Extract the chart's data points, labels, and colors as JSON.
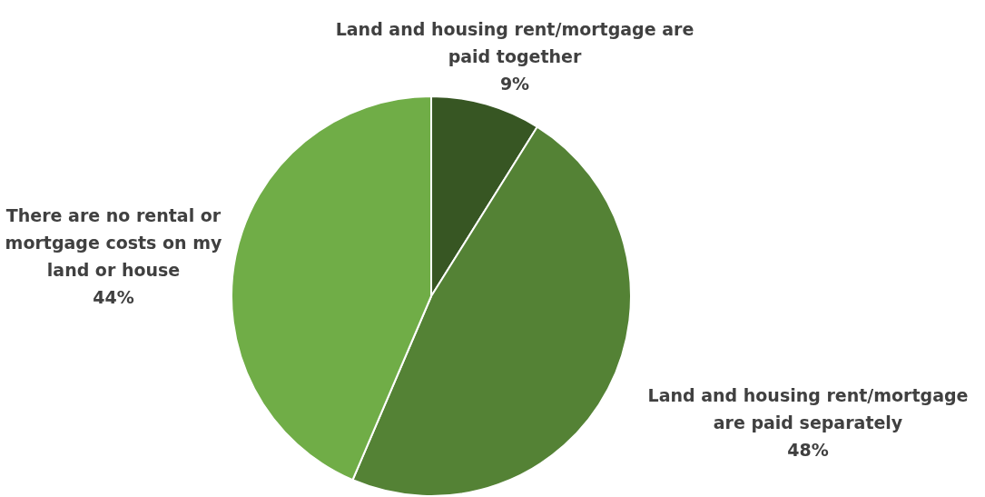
{
  "chart_data": {
    "type": "pie",
    "categories": [
      "Land and housing rent/mortgage are paid together",
      "Land and housing rent/mortgage are paid separately",
      "There are no rental or mortgage costs on my land or house"
    ],
    "values": [
      9,
      48,
      44
    ],
    "value_labels": [
      "9%",
      "48%",
      "44%"
    ],
    "colors": [
      "#375623",
      "#548235",
      "#70ad47"
    ],
    "legend": false
  }
}
